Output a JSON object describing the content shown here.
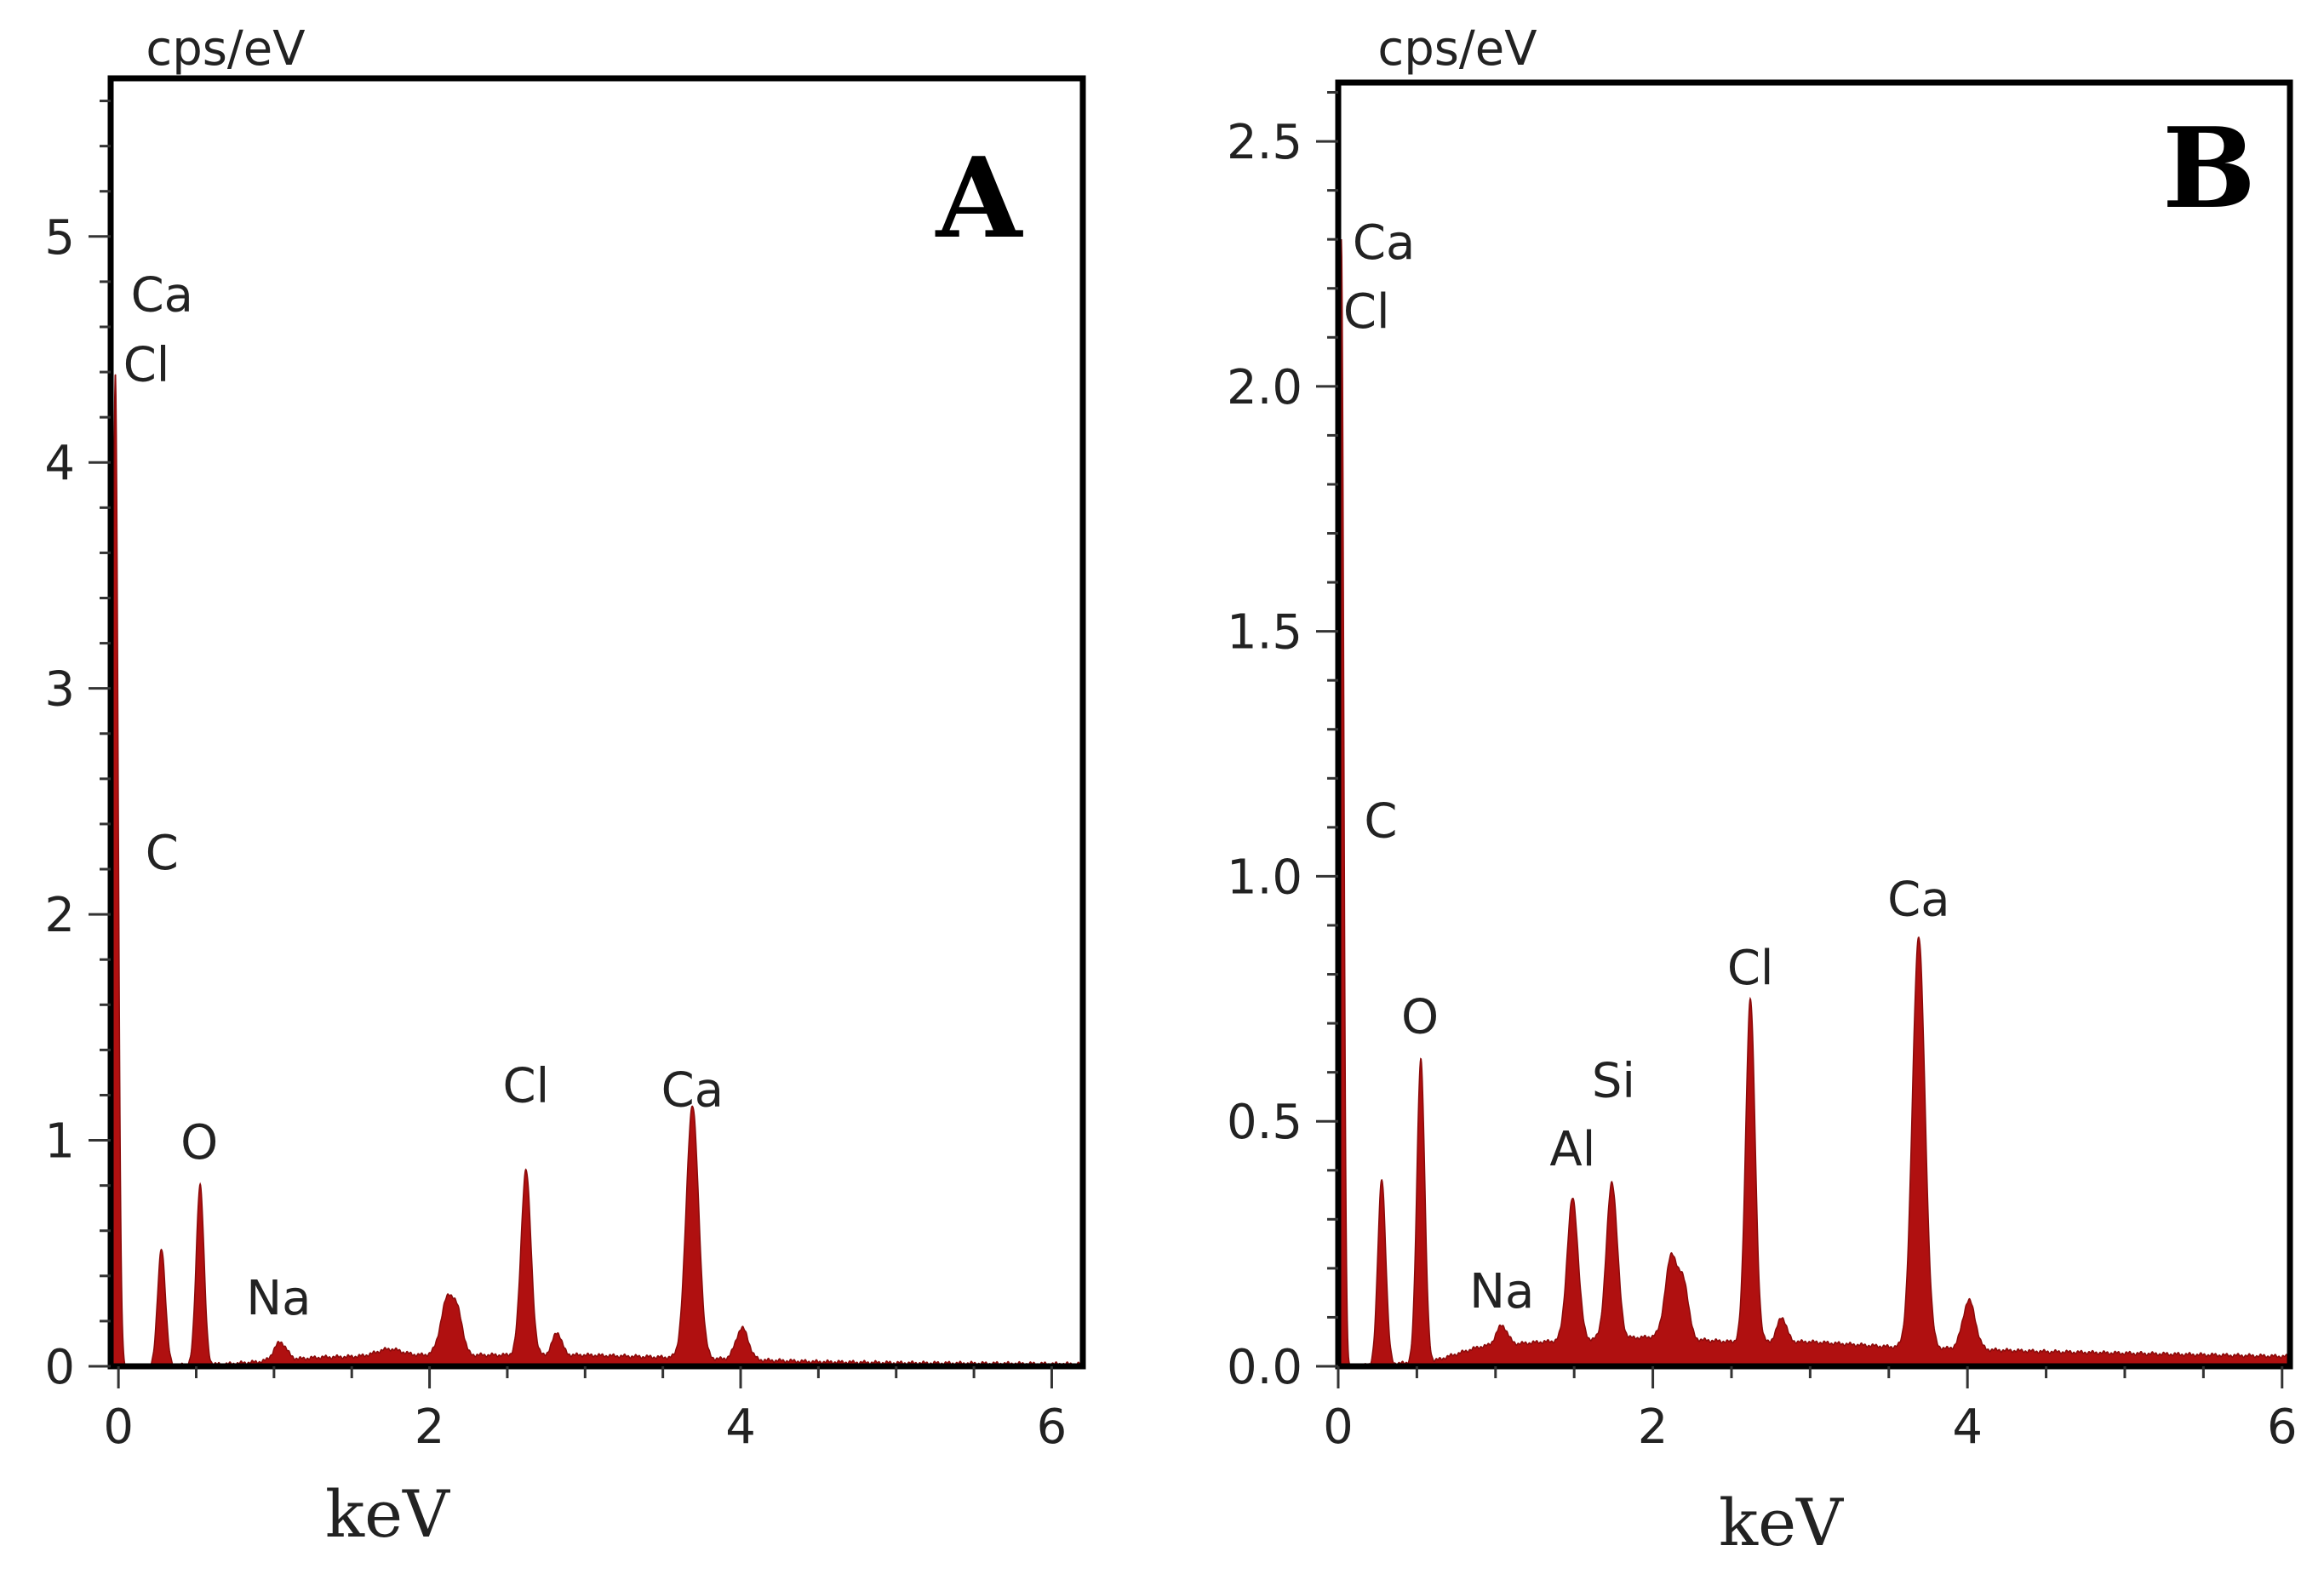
{
  "chart_data": [
    {
      "type": "area",
      "panel": "A",
      "title": "A",
      "ylabel": "cps/eV",
      "xlabel": "keV",
      "xlim": [
        -0.05,
        6.2
      ],
      "ylim": [
        0,
        5.7
      ],
      "x_ticks": [
        0,
        2,
        4,
        6
      ],
      "x_tick_labels": [
        "0",
        "2",
        "4",
        "6"
      ],
      "y_ticks": [
        0,
        1,
        2,
        3,
        4,
        5
      ],
      "y_tick_labels": [
        "0",
        "1",
        "2",
        "3",
        "4",
        "5"
      ],
      "x_minor_step": 0.5,
      "y_minor_step": 0.2,
      "grid": false,
      "fill_color": "#b01010",
      "baseline": [
        [
          -0.05,
          0.0
        ],
        [
          0.1,
          0.0
        ],
        [
          0.7,
          0.01
        ],
        [
          1.3,
          0.04
        ],
        [
          2.0,
          0.05
        ],
        [
          2.5,
          0.05
        ],
        [
          3.0,
          0.05
        ],
        [
          3.5,
          0.04
        ],
        [
          4.5,
          0.02
        ],
        [
          5.0,
          0.015
        ],
        [
          6.2,
          0.01
        ]
      ],
      "peaks": [
        {
          "x": -0.02,
          "height": 4.4,
          "sigma": 0.018
        },
        {
          "x": 0.277,
          "height": 0.52,
          "sigma": 0.025
        },
        {
          "x": 0.525,
          "height": 0.8,
          "sigma": 0.025
        },
        {
          "x": 1.04,
          "height": 0.08,
          "sigma": 0.04
        },
        {
          "x": 1.74,
          "height": 0.03,
          "sigma": 0.08
        },
        {
          "x": 2.12,
          "height": 0.26,
          "sigma": 0.045
        },
        {
          "x": 2.19,
          "height": 0.12,
          "sigma": 0.03
        },
        {
          "x": 2.62,
          "height": 0.82,
          "sigma": 0.032
        },
        {
          "x": 2.82,
          "height": 0.1,
          "sigma": 0.03
        },
        {
          "x": 3.69,
          "height": 1.12,
          "sigma": 0.04
        },
        {
          "x": 4.01,
          "height": 0.14,
          "sigma": 0.04
        }
      ],
      "annotations": [
        {
          "text": "Ca",
          "x": 0.28,
          "y": 4.67
        },
        {
          "text": "Cl",
          "x": 0.18,
          "y": 4.36
        },
        {
          "text": "C",
          "x": 0.28,
          "y": 2.2
        },
        {
          "text": "O",
          "x": 0.52,
          "y": 0.92
        },
        {
          "text": "Na",
          "x": 1.03,
          "y": 0.23
        },
        {
          "text": "Cl",
          "x": 2.62,
          "y": 1.17
        },
        {
          "text": "Ca",
          "x": 3.69,
          "y": 1.15
        }
      ]
    },
    {
      "type": "area",
      "panel": "B",
      "title": "B",
      "ylabel": "cps/eV",
      "xlabel": "keV",
      "xlim": [
        0,
        6.05
      ],
      "ylim": [
        0,
        2.62
      ],
      "x_ticks": [
        0,
        2,
        4,
        6
      ],
      "x_tick_labels": [
        "0",
        "2",
        "4",
        "6"
      ],
      "y_ticks": [
        0,
        0.5,
        1,
        1.5,
        2,
        2.5
      ],
      "y_tick_labels": [
        "0.0",
        "0.5",
        "1.0",
        "1.5",
        "2.0",
        "2.5"
      ],
      "x_minor_step": 0.5,
      "y_minor_step": 0.1,
      "grid": false,
      "fill_color": "#b01010",
      "baseline": [
        [
          0.0,
          0.0
        ],
        [
          0.1,
          0.0
        ],
        [
          0.6,
          0.01
        ],
        [
          0.9,
          0.04
        ],
        [
          1.3,
          0.05
        ],
        [
          2.0,
          0.06
        ],
        [
          2.5,
          0.05
        ],
        [
          3.0,
          0.05
        ],
        [
          3.5,
          0.04
        ],
        [
          4.5,
          0.03
        ],
        [
          6.05,
          0.02
        ]
      ],
      "peaks": [
        {
          "x": 0.02,
          "height": 2.3,
          "sigma": 0.015
        },
        {
          "x": 0.277,
          "height": 0.38,
          "sigma": 0.025
        },
        {
          "x": 0.525,
          "height": 0.62,
          "sigma": 0.025
        },
        {
          "x": 1.04,
          "height": 0.04,
          "sigma": 0.035
        },
        {
          "x": 1.49,
          "height": 0.29,
          "sigma": 0.035
        },
        {
          "x": 1.74,
          "height": 0.32,
          "sigma": 0.035
        },
        {
          "x": 2.12,
          "height": 0.17,
          "sigma": 0.04
        },
        {
          "x": 2.2,
          "height": 0.1,
          "sigma": 0.03
        },
        {
          "x": 2.62,
          "height": 0.7,
          "sigma": 0.03
        },
        {
          "x": 2.82,
          "height": 0.05,
          "sigma": 0.03
        },
        {
          "x": 3.69,
          "height": 0.84,
          "sigma": 0.04
        },
        {
          "x": 4.01,
          "height": 0.1,
          "sigma": 0.04
        }
      ],
      "annotations": [
        {
          "text": "Ca",
          "x": 0.29,
          "y": 2.26
        },
        {
          "text": "Cl",
          "x": 0.18,
          "y": 2.12
        },
        {
          "text": "C",
          "x": 0.27,
          "y": 1.08
        },
        {
          "text": "O",
          "x": 0.52,
          "y": 0.68
        },
        {
          "text": "Si",
          "x": 1.75,
          "y": 0.55
        },
        {
          "text": "Al",
          "x": 1.49,
          "y": 0.41
        },
        {
          "text": "Na",
          "x": 1.04,
          "y": 0.12
        },
        {
          "text": "Cl",
          "x": 2.62,
          "y": 0.78
        },
        {
          "text": "Ca",
          "x": 3.69,
          "y": 0.92
        }
      ]
    }
  ]
}
